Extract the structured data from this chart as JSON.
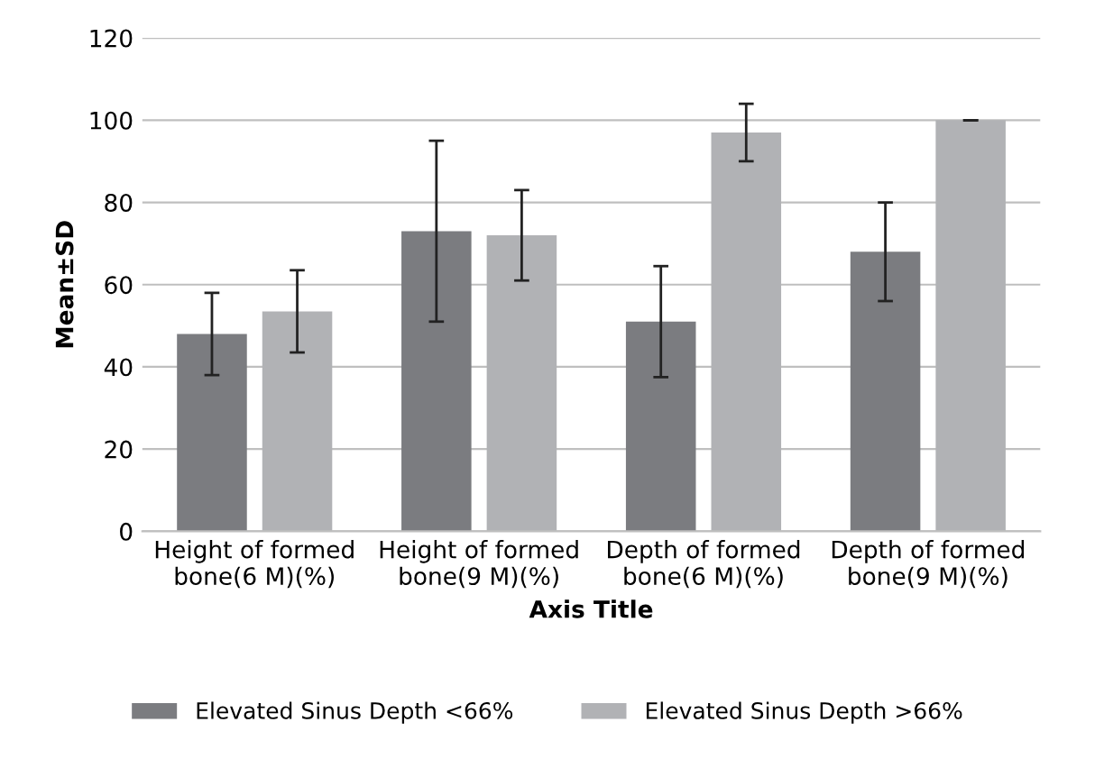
{
  "chart_data": {
    "type": "bar",
    "xlabel": "Axis Title",
    "ylabel": "Mean±SD",
    "categories": [
      "Height of formed\nbone(6 M)(%)",
      "Height of formed\nbone(9 M)(%)",
      "Depth of formed\nbone(6 M)(%)",
      "Depth of formed\nbone(9 M)(%)"
    ],
    "series": [
      {
        "name": "Elevated Sinus Depth <66%",
        "color": "#7b7c80",
        "values": [
          48,
          73,
          51,
          68
        ],
        "errors": [
          10,
          22,
          13.5,
          12
        ]
      },
      {
        "name": "Elevated Sinus Depth >66%",
        "color": "#b1b2b5",
        "values": [
          53.5,
          72,
          97,
          100
        ],
        "errors": [
          10,
          11,
          7,
          0
        ]
      }
    ],
    "ylim": [
      0,
      120
    ],
    "yticks": [
      0,
      20,
      40,
      60,
      80,
      100,
      120
    ],
    "grid": "y",
    "legend": "bottom"
  }
}
